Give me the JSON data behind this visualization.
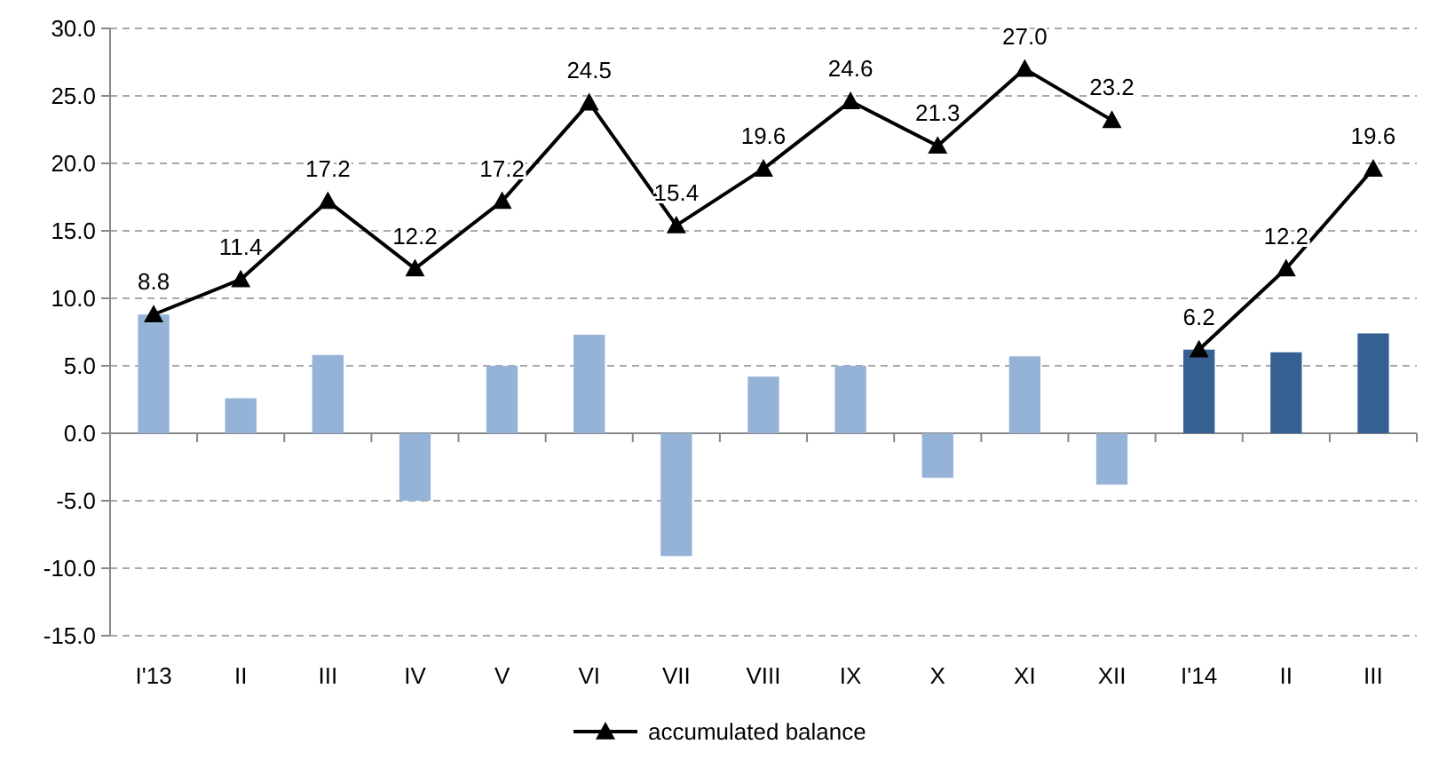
{
  "chart_data": {
    "type": "bar",
    "categories": [
      "I'13",
      "II",
      "III",
      "IV",
      "V",
      "VI",
      "VII",
      "VIII",
      "IX",
      "X",
      "XI",
      "XII",
      "I'14",
      "II",
      "III"
    ],
    "ylim": [
      -15,
      30
    ],
    "yticks": [
      {
        "value": -15,
        "label": "-15.0"
      },
      {
        "value": -10,
        "label": "-10.0"
      },
      {
        "value": -5,
        "label": "-5.0"
      },
      {
        "value": 0,
        "label": "0.0"
      },
      {
        "value": 5,
        "label": "5.0"
      },
      {
        "value": 10,
        "label": "10.0"
      },
      {
        "value": 15,
        "label": "15.0"
      },
      {
        "value": 20,
        "label": "20.0"
      },
      {
        "value": 25,
        "label": "25.0"
      },
      {
        "value": 30,
        "label": "30.0"
      }
    ],
    "grid": "y",
    "legend": "bottom",
    "series": [
      {
        "values": [
          8.8,
          2.6,
          5.8,
          -5.0,
          5.0,
          7.3,
          -9.1,
          4.2,
          5.0,
          -3.3,
          5.7,
          -3.8,
          6.2,
          6.0,
          7.4
        ],
        "colors": [
          "#95b3d7",
          "#95b3d7",
          "#95b3d7",
          "#95b3d7",
          "#95b3d7",
          "#95b3d7",
          "#95b3d7",
          "#95b3d7",
          "#95b3d7",
          "#95b3d7",
          "#95b3d7",
          "#95b3d7",
          "#366092",
          "#366092",
          "#366092"
        ]
      },
      {
        "type": "line",
        "name": "accumulated balance",
        "color": "#000000",
        "marker": "triangle",
        "line_style": "solid",
        "values": [
          8.8,
          11.4,
          17.2,
          12.2,
          17.2,
          24.5,
          15.4,
          19.6,
          24.6,
          21.3,
          27.0,
          23.2,
          null,
          null,
          null
        ],
        "value_labels": [
          "8.8",
          "11.4",
          "17.2",
          "12.2",
          "17.2",
          "24.5",
          "15.4",
          "19.6",
          "24.6",
          "21.3",
          "27.0",
          "23.2",
          null,
          null,
          null
        ]
      },
      {
        "type": "line",
        "color": "#000000",
        "marker": "triangle",
        "line_style": "solid",
        "values": [
          null,
          null,
          null,
          null,
          null,
          null,
          null,
          null,
          null,
          null,
          null,
          null,
          6.2,
          12.2,
          19.6
        ],
        "value_labels": [
          null,
          null,
          null,
          null,
          null,
          null,
          null,
          null,
          null,
          null,
          null,
          null,
          "6.2",
          "12.2",
          "19.6"
        ]
      }
    ]
  }
}
